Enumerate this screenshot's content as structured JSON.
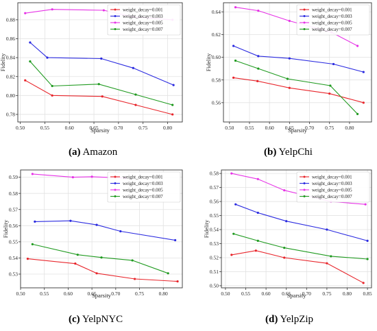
{
  "captions": [
    {
      "letter": "(a)",
      "name": "Amazon"
    },
    {
      "letter": "(b)",
      "name": "YelpChi"
    },
    {
      "letter": "(c)",
      "name": "YelpNYC"
    },
    {
      "letter": "(d)",
      "name": "YelpZip"
    }
  ],
  "series_colors": [
    "#e8242a",
    "#2a2ae0",
    "#e632e6",
    "#1f9a1f"
  ],
  "chart_data": [
    {
      "type": "line",
      "title": "",
      "xlabel": "Sparsity",
      "ylabel": "Fidelity",
      "xlim": [
        0.495,
        0.83
      ],
      "ylim": [
        0.772,
        0.898
      ],
      "xticks": [
        "0.50",
        "0.55",
        "0.60",
        "0.65",
        "0.70",
        "0.75",
        "0.80"
      ],
      "yticks": [
        "0.78",
        "0.80",
        "0.82",
        "0.84",
        "0.86",
        "0.88"
      ],
      "grid": true,
      "legend": "top-right",
      "series": [
        {
          "name": "weight_decay=0.001",
          "x": [
            0.51,
            0.565,
            0.667,
            0.735,
            0.81
          ],
          "y": [
            0.816,
            0.8,
            0.799,
            0.79,
            0.78
          ]
        },
        {
          "name": "weight_decay=0.003",
          "x": [
            0.52,
            0.555,
            0.665,
            0.73,
            0.812
          ],
          "y": [
            0.856,
            0.84,
            0.839,
            0.829,
            0.811
          ]
        },
        {
          "name": "weight_decay=0.005",
          "x": [
            0.51,
            0.565,
            0.67,
            0.73,
            0.81
          ],
          "y": [
            0.887,
            0.891,
            0.89,
            0.883,
            0.88
          ]
        },
        {
          "name": "weight_decay=0.007",
          "x": [
            0.52,
            0.565,
            0.66,
            0.735,
            0.81
          ],
          "y": [
            0.836,
            0.81,
            0.812,
            0.801,
            0.79
          ]
        }
      ]
    },
    {
      "type": "line",
      "title": "",
      "xlabel": "Sparsity",
      "ylabel": "Fidelity",
      "xlim": [
        0.485,
        0.855
      ],
      "ylim": [
        0.543,
        0.648
      ],
      "xticks": [
        "0.50",
        "0.55",
        "0.60",
        "0.65",
        "0.70",
        "0.75",
        "0.80"
      ],
      "yticks": [
        "0.56",
        "0.58",
        "0.60",
        "0.62",
        "0.64"
      ],
      "grid": true,
      "legend": "top-right",
      "series": [
        {
          "name": "weight_decay=0.001",
          "x": [
            0.51,
            0.57,
            0.65,
            0.75,
            0.835
          ],
          "y": [
            0.582,
            0.579,
            0.573,
            0.568,
            0.56
          ]
        },
        {
          "name": "weight_decay=0.003",
          "x": [
            0.51,
            0.572,
            0.65,
            0.76,
            0.835
          ],
          "y": [
            0.61,
            0.601,
            0.599,
            0.594,
            0.587
          ]
        },
        {
          "name": "weight_decay=0.005",
          "x": [
            0.515,
            0.572,
            0.65,
            0.755,
            0.82
          ],
          "y": [
            0.644,
            0.641,
            0.632,
            0.622,
            0.61
          ]
        },
        {
          "name": "weight_decay=0.007",
          "x": [
            0.515,
            0.572,
            0.645,
            0.752,
            0.82
          ],
          "y": [
            0.597,
            0.59,
            0.581,
            0.575,
            0.55
          ]
        }
      ]
    },
    {
      "type": "line",
      "title": "",
      "xlabel": "Sparsity",
      "ylabel": "Fidelity",
      "xlim": [
        0.5,
        0.84
      ],
      "ylim": [
        0.5215,
        0.5945
      ],
      "xticks": [
        "0.50",
        "0.55",
        "0.60",
        "0.65",
        "0.70",
        "0.75",
        "0.80"
      ],
      "yticks": [
        "0.53",
        "0.54",
        "0.55",
        "0.56",
        "0.57",
        "0.58",
        "0.59"
      ],
      "grid": true,
      "legend": "top-right",
      "series": [
        {
          "name": "weight_decay=0.001",
          "x": [
            0.515,
            0.615,
            0.66,
            0.74,
            0.83
          ],
          "y": [
            0.5395,
            0.5365,
            0.5305,
            0.527,
            0.5255
          ]
        },
        {
          "name": "weight_decay=0.003",
          "x": [
            0.53,
            0.605,
            0.66,
            0.71,
            0.825
          ],
          "y": [
            0.5625,
            0.563,
            0.5605,
            0.5565,
            0.551
          ]
        },
        {
          "name": "weight_decay=0.005",
          "x": [
            0.525,
            0.61,
            0.65,
            0.72
          ],
          "y": [
            0.592,
            0.59,
            0.5903,
            0.5895
          ]
        },
        {
          "name": "weight_decay=0.007",
          "x": [
            0.525,
            0.62,
            0.67,
            0.735,
            0.81
          ],
          "y": [
            0.5485,
            0.542,
            0.5403,
            0.5385,
            0.5305
          ]
        }
      ]
    },
    {
      "type": "line",
      "title": "",
      "xlabel": "Sparsity",
      "ylabel": "Fidelity",
      "xlim": [
        0.49,
        0.86
      ],
      "ylim": [
        0.4985,
        0.5825
      ],
      "xticks": [
        "0.50",
        "0.55",
        "0.60",
        "0.65",
        "0.70",
        "0.75",
        "0.80",
        "0.85"
      ],
      "yticks": [
        "0.50",
        "0.51",
        "0.52",
        "0.53",
        "0.54",
        "0.55",
        "0.56",
        "0.57",
        "0.58"
      ],
      "grid": true,
      "legend": "top-right",
      "series": [
        {
          "name": "weight_decay=0.001",
          "x": [
            0.515,
            0.575,
            0.645,
            0.75,
            0.84
          ],
          "y": [
            0.522,
            0.525,
            0.52,
            0.516,
            0.502
          ]
        },
        {
          "name": "weight_decay=0.003",
          "x": [
            0.525,
            0.58,
            0.65,
            0.75,
            0.85
          ],
          "y": [
            0.558,
            0.552,
            0.546,
            0.54,
            0.532
          ]
        },
        {
          "name": "weight_decay=0.005",
          "x": [
            0.515,
            0.58,
            0.645,
            0.76,
            0.845
          ],
          "y": [
            0.58,
            0.576,
            0.568,
            0.56,
            0.558
          ]
        },
        {
          "name": "weight_decay=0.007",
          "x": [
            0.52,
            0.58,
            0.645,
            0.76,
            0.85
          ],
          "y": [
            0.537,
            0.532,
            0.527,
            0.521,
            0.519
          ]
        }
      ]
    }
  ]
}
